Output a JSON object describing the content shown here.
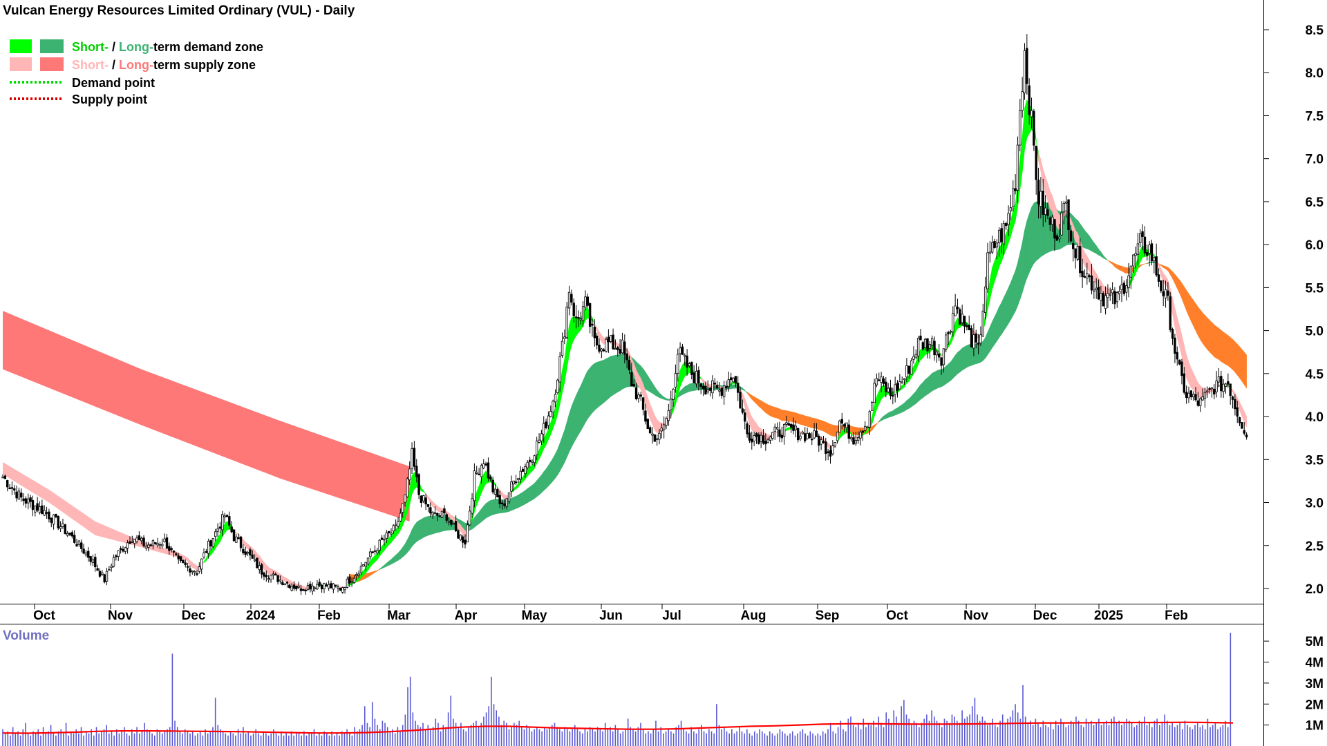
{
  "title": "Vulcan Energy Resources Limited Ordinary (VUL) - Daily",
  "legend": {
    "row1_short": "Short-",
    "row1_sep": " / ",
    "row1_long": "Long-",
    "row1_rest": "term demand zone",
    "row2_short": "Short-",
    "row2_sep": " / ",
    "row2_long": "Long-",
    "row2_rest": "term supply zone",
    "row3": "Demand point",
    "row4": "Supply point"
  },
  "volume_label": "Volume",
  "colors": {
    "short_demand": "#00ff00",
    "long_demand": "#3cb371",
    "short_supply": "#ffb6b6",
    "long_supply": "#ff7878",
    "orange_zone": "#ff7f2a",
    "volume_bar": "#5a5ad2",
    "volume_ma": "#ff0000",
    "candle": "#000000"
  },
  "chart_data": [
    {
      "type": "candlestick",
      "title": "Vulcan Energy Resources Limited Ordinary (VUL) - Daily",
      "y_ticks": [
        "8.5",
        "8.0",
        "7.5",
        "7.0",
        "6.5",
        "6.0",
        "5.5",
        "5.0",
        "4.5",
        "4.0",
        "3.5",
        "3.0",
        "2.5",
        "2.0"
      ],
      "ylim": [
        1.8,
        8.7
      ],
      "x_ticks": [
        "Oct",
        "Nov",
        "Dec",
        "2024",
        "Feb",
        "Mar",
        "Apr",
        "May",
        "Jun",
        "Jul",
        "Aug",
        "Sep",
        "Oct",
        "Nov",
        "Dec",
        "2025",
        "Feb"
      ],
      "price_path": [
        [
          0,
          3.3
        ],
        [
          8,
          3.05
        ],
        [
          18,
          2.9
        ],
        [
          28,
          2.65
        ],
        [
          38,
          2.35
        ],
        [
          44,
          2.1
        ],
        [
          48,
          2.35
        ],
        [
          56,
          2.6
        ],
        [
          62,
          2.5
        ],
        [
          70,
          2.55
        ],
        [
          76,
          2.3
        ],
        [
          84,
          2.2
        ],
        [
          88,
          2.45
        ],
        [
          96,
          2.85
        ],
        [
          100,
          2.6
        ],
        [
          106,
          2.4
        ],
        [
          112,
          2.2
        ],
        [
          120,
          2.1
        ],
        [
          128,
          2.0
        ],
        [
          136,
          2.05
        ],
        [
          146,
          2.0
        ],
        [
          152,
          2.15
        ],
        [
          158,
          2.35
        ],
        [
          164,
          2.55
        ],
        [
          170,
          2.7
        ],
        [
          174,
          3.05
        ],
        [
          177,
          3.55
        ],
        [
          180,
          3.1
        ],
        [
          186,
          2.85
        ],
        [
          192,
          2.85
        ],
        [
          196,
          2.65
        ],
        [
          200,
          2.55
        ],
        [
          204,
          3.3
        ],
        [
          208,
          3.5
        ],
        [
          212,
          3.15
        ],
        [
          216,
          2.95
        ],
        [
          222,
          3.3
        ],
        [
          228,
          3.5
        ],
        [
          234,
          3.85
        ],
        [
          238,
          4.2
        ],
        [
          242,
          4.8
        ],
        [
          245,
          5.5
        ],
        [
          248,
          5.1
        ],
        [
          252,
          5.3
        ],
        [
          256,
          4.85
        ],
        [
          262,
          4.85
        ],
        [
          268,
          4.8
        ],
        [
          272,
          4.4
        ],
        [
          276,
          4.15
        ],
        [
          280,
          3.8
        ],
        [
          284,
          3.75
        ],
        [
          288,
          4.05
        ],
        [
          292,
          4.75
        ],
        [
          298,
          4.5
        ],
        [
          304,
          4.35
        ],
        [
          310,
          4.3
        ],
        [
          316,
          4.5
        ],
        [
          322,
          3.8
        ],
        [
          330,
          3.75
        ],
        [
          338,
          3.85
        ],
        [
          346,
          3.8
        ],
        [
          352,
          3.75
        ],
        [
          358,
          3.6
        ],
        [
          362,
          3.95
        ],
        [
          368,
          3.75
        ],
        [
          374,
          3.95
        ],
        [
          378,
          4.45
        ],
        [
          384,
          4.25
        ],
        [
          390,
          4.45
        ],
        [
          396,
          4.85
        ],
        [
          402,
          4.85
        ],
        [
          406,
          4.7
        ],
        [
          412,
          5.3
        ],
        [
          418,
          4.95
        ],
        [
          422,
          4.75
        ],
        [
          426,
          5.8
        ],
        [
          430,
          6.05
        ],
        [
          434,
          6.2
        ],
        [
          438,
          6.75
        ],
        [
          440,
          7.6
        ],
        [
          442,
          8.25
        ],
        [
          445,
          7.4
        ],
        [
          448,
          6.55
        ],
        [
          452,
          6.3
        ],
        [
          456,
          6.15
        ],
        [
          460,
          6.45
        ],
        [
          464,
          5.9
        ],
        [
          470,
          5.6
        ],
        [
          476,
          5.4
        ],
        [
          482,
          5.35
        ],
        [
          488,
          5.75
        ],
        [
          492,
          6.0
        ],
        [
          496,
          5.95
        ],
        [
          500,
          5.6
        ],
        [
          504,
          5.3
        ],
        [
          508,
          4.6
        ],
        [
          512,
          4.25
        ],
        [
          518,
          4.15
        ],
        [
          524,
          4.35
        ],
        [
          530,
          4.4
        ],
        [
          534,
          4.05
        ],
        [
          538,
          3.8
        ]
      ],
      "short_supply_band": {
        "top": [
          [
            0,
            3.47
          ],
          [
            20,
            3.15
          ],
          [
            40,
            2.78
          ],
          [
            60,
            2.55
          ],
          [
            76,
            2.42
          ],
          [
            80,
            2.36
          ]
        ],
        "bottom": [
          [
            0,
            3.33
          ],
          [
            20,
            3.0
          ],
          [
            40,
            2.62
          ],
          [
            60,
            2.48
          ],
          [
            76,
            2.36
          ],
          [
            80,
            2.32
          ]
        ]
      },
      "long_supply_band": {
        "top": [
          [
            0,
            5.23
          ],
          [
            60,
            4.55
          ],
          [
            120,
            3.95
          ],
          [
            176,
            3.42
          ]
        ],
        "bottom": [
          [
            0,
            4.55
          ],
          [
            60,
            3.9
          ],
          [
            120,
            3.28
          ],
          [
            176,
            2.78
          ]
        ]
      },
      "volume": {
        "label": "Volume",
        "y_ticks": [
          "5M",
          "4M",
          "3M",
          "2M",
          "1M"
        ],
        "ylim": [
          0,
          5.4
        ],
        "bars_millions": [
          0.8,
          0.6,
          0.7,
          0.5,
          0.9,
          0.6,
          0.7,
          0.5,
          0.8,
          1.1,
          0.6,
          0.5,
          0.7,
          0.6,
          0.8,
          0.5,
          0.9,
          0.6,
          0.7,
          1.0,
          0.6,
          0.5,
          0.7,
          0.8,
          0.6,
          1.1,
          0.5,
          0.7,
          0.6,
          0.8,
          0.6,
          0.9,
          0.5,
          0.7,
          0.6,
          0.8,
          0.5,
          0.9,
          0.6,
          0.7,
          0.8,
          1.0,
          0.6,
          0.7,
          0.5,
          0.8,
          0.6,
          0.7,
          0.9,
          0.6,
          0.5,
          0.8,
          0.6,
          0.9,
          0.6,
          0.7,
          1.1,
          0.8,
          0.7,
          0.6,
          0.5,
          0.8,
          0.7,
          0.6,
          0.7,
          0.8,
          0.9,
          4.4,
          1.2,
          0.9,
          0.7,
          0.6,
          0.8,
          0.7,
          0.6,
          0.7,
          0.5,
          0.6,
          0.7,
          0.5,
          0.8,
          0.6,
          0.7,
          0.9,
          2.3,
          1.0,
          0.8,
          0.7,
          0.6,
          0.5,
          0.7,
          0.6,
          0.5,
          0.8,
          0.6,
          0.9,
          0.6,
          0.7,
          0.5,
          0.6,
          0.8,
          0.6,
          0.5,
          0.7,
          0.6,
          0.5,
          0.6,
          0.8,
          0.6,
          0.5,
          0.7,
          0.5,
          0.6,
          0.5,
          0.7,
          0.5,
          0.6,
          0.6,
          0.5,
          0.7,
          0.5,
          0.6,
          0.6,
          0.8,
          0.5,
          0.6,
          0.5,
          0.7,
          0.6,
          0.5,
          0.7,
          0.5,
          0.6,
          0.5,
          0.7,
          0.6,
          0.8,
          0.6,
          0.5,
          0.9,
          0.7,
          0.8,
          1.0,
          1.9,
          1.1,
          0.9,
          2.1,
          1.3,
          1.0,
          0.8,
          1.2,
          1.1,
          0.9,
          0.7,
          0.8,
          0.6,
          0.9,
          0.7,
          1.0,
          1.5,
          2.8,
          3.3,
          1.6,
          1.2,
          1.0,
          0.9,
          1.1,
          0.8,
          1.0,
          0.8,
          0.9,
          1.3,
          1.1,
          0.7,
          1.0,
          0.9,
          1.6,
          2.4,
          1.3,
          1.1,
          0.9,
          1.1,
          0.8,
          0.7,
          0.9,
          1.0,
          1.1,
          1.2,
          0.9,
          1.1,
          1.4,
          1.6,
          1.9,
          3.3,
          2.0,
          1.7,
          1.4,
          1.0,
          1.2,
          1.1,
          0.8,
          0.9,
          1.1,
          1.0,
          1.2,
          0.9,
          0.8,
          1.0,
          0.9,
          0.7,
          0.8,
          0.9,
          0.8,
          0.7,
          0.9,
          0.8,
          0.9,
          1.0,
          1.1,
          0.9,
          0.8,
          0.7,
          0.9,
          0.8,
          0.7,
          0.8,
          1.0,
          0.8,
          0.7,
          0.6,
          0.8,
          0.7,
          0.9,
          0.8,
          0.7,
          0.9,
          0.8,
          0.7,
          1.1,
          0.8,
          0.9,
          0.7,
          1.0,
          0.8,
          0.6,
          0.7,
          0.8,
          1.3,
          0.9,
          0.8,
          0.7,
          0.9,
          1.1,
          0.8,
          0.6,
          0.7,
          0.6,
          0.8,
          1.2,
          0.7,
          0.9,
          0.6,
          0.7,
          0.8,
          0.7,
          0.6,
          0.9,
          1.0,
          1.2,
          0.8,
          0.7,
          0.6,
          0.9,
          0.7,
          0.6,
          0.8,
          1.0,
          0.7,
          0.6,
          0.8,
          0.7,
          0.6,
          2.0,
          1.0,
          0.8,
          0.9,
          0.7,
          0.6,
          0.8,
          0.6,
          0.7,
          0.9,
          0.7,
          0.6,
          0.8,
          0.6,
          0.5,
          0.7,
          0.6,
          0.8,
          0.7,
          0.6,
          0.5,
          0.7,
          0.6,
          0.5,
          0.6,
          0.8,
          0.7,
          0.6,
          0.5,
          0.6,
          0.7,
          0.5,
          0.6,
          0.7,
          0.8,
          0.6,
          0.5,
          0.7,
          0.6,
          0.5,
          0.6,
          0.5,
          0.7,
          0.6,
          0.8,
          1.1,
          0.7,
          0.6,
          0.9,
          1.2,
          0.8,
          0.7,
          1.3,
          1.4,
          1.0,
          0.9,
          1.1,
          0.8,
          1.3,
          0.9,
          1.1,
          1.0,
          1.2,
          0.9,
          1.4,
          1.1,
          0.9,
          1.6,
          1.3,
          1.1,
          1.7,
          1.4,
          1.1,
          1.9,
          2.2,
          1.5,
          1.3,
          1.0,
          1.2,
          1.1,
          0.9,
          1.1,
          1.3,
          1.5,
          1.2,
          1.7,
          1.4,
          1.2,
          1.1,
          0.9,
          1.3,
          1.2,
          1.1,
          1.5,
          1.4,
          1.2,
          1.1,
          1.7,
          1.3,
          1.4,
          1.5,
          1.9,
          2.3,
          1.5,
          1.2,
          1.4,
          1.2,
          1.0,
          1.1,
          1.3,
          1.0,
          0.9,
          1.2,
          1.5,
          1.1,
          1.3,
          1.4,
          1.7,
          2.0,
          1.6,
          1.3,
          2.9,
          1.4,
          1.1,
          1.2,
          1.0,
          1.3,
          1.1,
          0.9,
          1.2,
          1.0,
          0.9,
          1.1,
          0.8,
          1.2,
          1.0,
          1.3,
          1.1,
          0.9,
          1.0,
          1.2,
          1.1,
          1.4,
          1.2,
          1.0,
          0.9,
          1.3,
          1.1,
          1.2,
          1.0,
          1.1,
          1.3,
          1.0,
          1.1,
          1.2,
          1.0,
          1.3,
          1.4,
          1.1,
          1.2,
          1.0,
          1.1,
          1.3,
          1.2,
          1.1,
          0.9,
          1.0,
          1.2,
          1.1,
          1.4,
          1.0,
          1.1,
          0.9,
          1.2,
          1.3,
          1.0,
          1.1,
          1.5,
          1.2,
          1.0,
          1.1,
          0.9,
          1.0,
          1.1,
          0.8,
          1.2,
          1.0,
          0.9,
          0.8,
          1.0,
          1.1,
          0.9,
          1.0,
          0.8,
          1.3,
          0.9,
          1.0,
          1.1,
          0.8,
          0.9,
          1.0,
          1.2,
          0.9,
          5.4
        ],
        "ma_millions": [
          0.62,
          0.61,
          0.63,
          0.66,
          0.7,
          0.72,
          0.72,
          0.71,
          0.7,
          0.69,
          0.68,
          0.66,
          0.64,
          0.62,
          0.62,
          0.64,
          0.68,
          0.74,
          0.82,
          0.9,
          0.94,
          0.94,
          0.9,
          0.86,
          0.84,
          0.82,
          0.8,
          0.8,
          0.82,
          0.86,
          0.9,
          0.94,
          0.96,
          1.0,
          1.04,
          1.06,
          1.06,
          1.05,
          1.04,
          1.04,
          1.05,
          1.06,
          1.08,
          1.1,
          1.1,
          1.11,
          1.12,
          1.12,
          1.12,
          1.13,
          1.12,
          1.1
        ]
      }
    }
  ]
}
